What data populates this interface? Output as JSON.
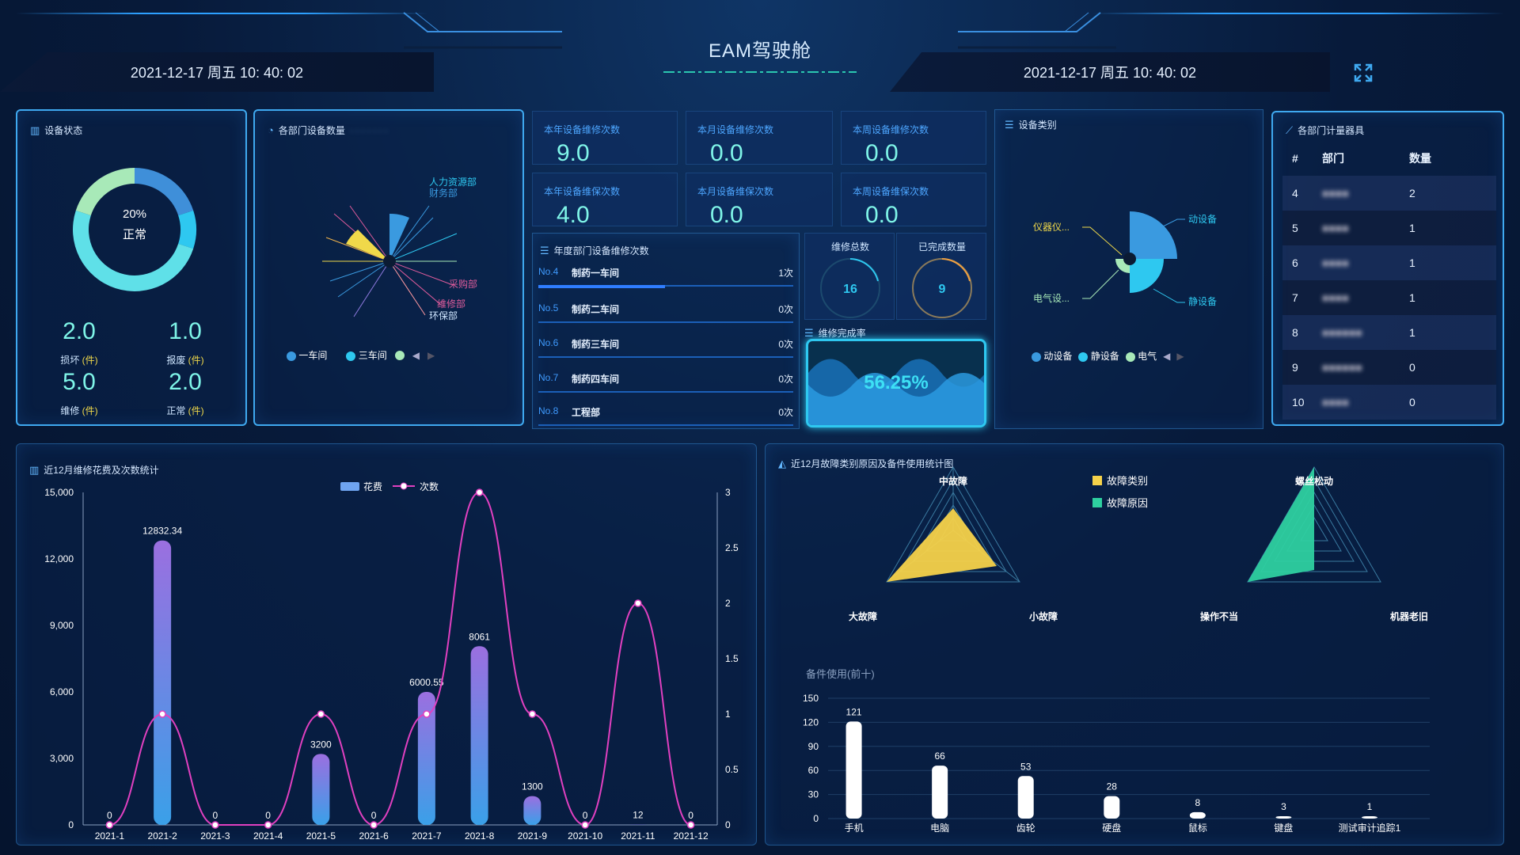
{
  "header": {
    "title": "EAM驾驶舱",
    "date_left": "2021-12-17 周五 10: 40: 02",
    "date_right": "2021-12-17 周五 10: 40: 02",
    "fullscreen_icon": "expand-icon"
  },
  "device_status": {
    "title": "设备状态",
    "donut_text_pct": "20%",
    "donut_text_lbl": "正常",
    "donut": [
      {
        "label": "损坏",
        "value": 2,
        "color": "#3f8fd9"
      },
      {
        "label": "报废",
        "value": 1,
        "color": "#2ec8f0"
      },
      {
        "label": "维修",
        "value": 5,
        "color": "#5fe0e8"
      },
      {
        "label": "正常",
        "value": 2,
        "color": "#a8e9b8"
      }
    ],
    "stats": [
      {
        "value": "2.0",
        "label": "损坏",
        "unit": "(件)"
      },
      {
        "value": "1.0",
        "label": "报废",
        "unit": "(件)"
      },
      {
        "value": "5.0",
        "label": "维修",
        "unit": "(件)"
      },
      {
        "value": "2.0",
        "label": "正常",
        "unit": "(件)"
      }
    ]
  },
  "dept_devices": {
    "title": "各部门设备数量",
    "labels": [
      "人力资源部",
      "财务部",
      "采购部",
      "维修部",
      "环保部"
    ],
    "legend": [
      {
        "label": "一车间",
        "color": "#3a9ae0"
      },
      {
        "label": "三车间",
        "color": "#2ec8f0"
      },
      {
        "label": "",
        "color": "#a8e9b8"
      }
    ]
  },
  "stat_cards": [
    {
      "label": "本年设备维修次数",
      "value": "9.0"
    },
    {
      "label": "本月设备维修次数",
      "value": "0.0"
    },
    {
      "label": "本周设备维修次数",
      "value": "0.0"
    },
    {
      "label": "本年设备维保次数",
      "value": "4.0"
    },
    {
      "label": "本月设备维保次数",
      "value": "0.0"
    },
    {
      "label": "本周设备维保次数",
      "value": "0.0"
    }
  ],
  "annual_repairs": {
    "title": "年度部门设备维修次数",
    "rows": [
      {
        "no": "No.4",
        "name": "制药一车间",
        "count": "1次",
        "fill": 1
      },
      {
        "no": "No.5",
        "name": "制药二车间",
        "count": "0次",
        "fill": 0
      },
      {
        "no": "No.6",
        "name": "制药三车间",
        "count": "0次",
        "fill": 0
      },
      {
        "no": "No.7",
        "name": "制药四车间",
        "count": "0次",
        "fill": 0
      },
      {
        "no": "No.8",
        "name": "工程部",
        "count": "0次",
        "fill": 0
      }
    ]
  },
  "repair_totals": {
    "total_label": "维修总数",
    "total_value": "16",
    "done_label": "已完成数量",
    "done_value": "9"
  },
  "completion": {
    "title": "维修完成率",
    "value": "56.25%",
    "fraction": 0.5625
  },
  "device_category": {
    "title": "设备类别",
    "labels": [
      "动设备",
      "静设备",
      "电气设...",
      "仪器仪..."
    ],
    "legend": [
      {
        "label": "动设备",
        "color": "#3a9ae0"
      },
      {
        "label": "静设备",
        "color": "#2ec8f0"
      },
      {
        "label": "电气",
        "color": "#a8e9b8"
      }
    ]
  },
  "dept_meters": {
    "title": "各部门计量器具",
    "headers": [
      "#",
      "部门",
      "数量"
    ],
    "rows": [
      {
        "idx": "4",
        "count": "2"
      },
      {
        "idx": "5",
        "count": "1"
      },
      {
        "idx": "6",
        "count": "1"
      },
      {
        "idx": "7",
        "count": "1"
      },
      {
        "idx": "8",
        "count": "1"
      },
      {
        "idx": "9",
        "count": "0"
      },
      {
        "idx": "10",
        "count": "0"
      }
    ]
  },
  "chart_data": [
    {
      "type": "bar",
      "title": "近12月维修花费及次数统计",
      "categories": [
        "2021-1",
        "2021-2",
        "2021-3",
        "2021-4",
        "2021-5",
        "2021-6",
        "2021-7",
        "2021-8",
        "2021-9",
        "2021-10",
        "2021-11",
        "2021-12"
      ],
      "series": [
        {
          "name": "花费",
          "type": "bar",
          "axis": "left",
          "values": [
            0,
            12832.34,
            0,
            0,
            3200,
            0,
            6000.55,
            8061,
            1300,
            0,
            12,
            0
          ],
          "labels": [
            "0",
            "12832.34",
            "0",
            "0",
            "3200",
            "0",
            "6000.55",
            "8061",
            "1300",
            "0",
            "12",
            "0"
          ]
        },
        {
          "name": "次数",
          "type": "line",
          "axis": "right",
          "values": [
            0,
            1,
            0,
            0,
            1,
            0,
            1,
            3,
            1,
            0,
            2,
            0
          ]
        }
      ],
      "ylim_left": [
        0,
        15000
      ],
      "yticks_left": [
        "0",
        "3,000",
        "6,000",
        "9,000",
        "12,000",
        "15,000"
      ],
      "ylim_right": [
        0,
        3
      ],
      "yticks_right": [
        "0",
        "0.5",
        "1",
        "1.5",
        "2",
        "2.5",
        "3"
      ]
    },
    {
      "type": "radar",
      "title": "近12月故障类别原因及备件使用统计图",
      "legend": [
        "故障类别",
        "故障原因"
      ],
      "radar1_axes": [
        "中故障",
        "大故障",
        "小故障"
      ],
      "radar2_axes": [
        "螺丝松动",
        "操作不当",
        "机器老旧"
      ]
    },
    {
      "type": "bar",
      "title": "备件使用(前十)",
      "categories": [
        "手机",
        "电脑",
        "齿轮",
        "硬盘",
        "鼠标",
        "键盘",
        "测试审计追踪1"
      ],
      "values": [
        121,
        66,
        53,
        28,
        8,
        3,
        1
      ],
      "ylim": [
        0,
        150
      ],
      "yticks": [
        "0",
        "30",
        "60",
        "90",
        "120",
        "150"
      ]
    }
  ]
}
